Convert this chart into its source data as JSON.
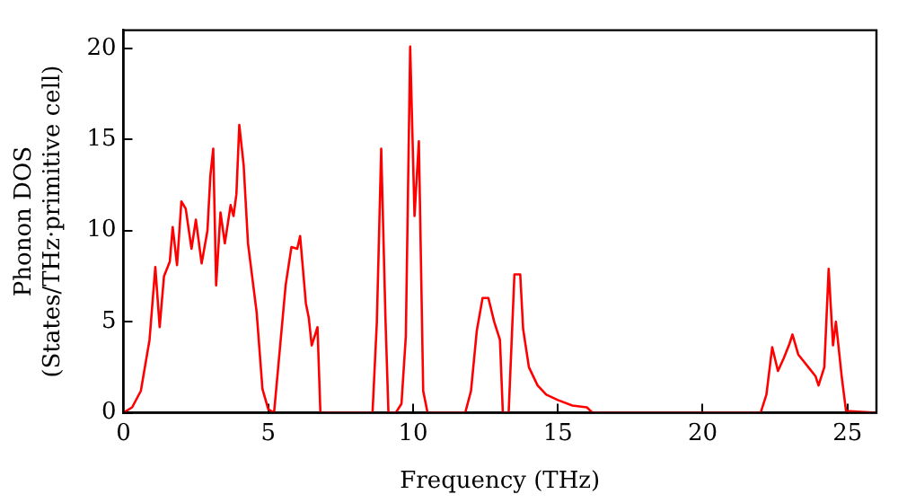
{
  "chart_data": {
    "type": "line",
    "xlabel": "Frequency (THz)",
    "ylabel": "Phonon DOS\n(States/THz·primitive cell)",
    "xlim": [
      0,
      26
    ],
    "xticks": [
      0,
      5,
      10,
      15,
      20,
      25
    ],
    "ylim": [
      0,
      21
    ],
    "yticks": [
      0,
      5,
      10,
      15,
      20
    ],
    "grid": false,
    "legend": false,
    "marker": "none",
    "line_style": "solid",
    "series": [
      {
        "color": "#ff0000",
        "x": [
          0,
          0.3,
          0.6,
          0.9,
          1.1,
          1.25,
          1.4,
          1.6,
          1.7,
          1.85,
          2.0,
          2.15,
          2.35,
          2.5,
          2.7,
          2.9,
          3.0,
          3.1,
          3.2,
          3.35,
          3.5,
          3.7,
          3.8,
          3.9,
          4.0,
          4.15,
          4.3,
          4.6,
          4.8,
          5.0,
          5.2,
          5.4,
          5.6,
          5.8,
          6.0,
          6.1,
          6.3,
          6.4,
          6.5,
          6.7,
          6.8,
          8.6,
          8.75,
          8.9,
          9.05,
          9.15,
          9.4,
          9.6,
          9.75,
          9.9,
          10.05,
          10.2,
          10.35,
          10.5,
          11.8,
          12.0,
          12.2,
          12.4,
          12.6,
          12.8,
          13.0,
          13.1,
          13.3,
          13.5,
          13.7,
          13.8,
          14.0,
          14.3,
          14.6,
          15.0,
          15.5,
          16.0,
          16.2,
          22.0,
          22.2,
          22.4,
          22.6,
          22.8,
          23.0,
          23.1,
          23.3,
          23.5,
          23.7,
          23.9,
          24.0,
          24.2,
          24.35,
          24.5,
          24.6,
          24.8,
          24.95,
          26
        ],
        "values": [
          0,
          0.3,
          1.2,
          4,
          8,
          4.7,
          7.5,
          8.3,
          10.2,
          8.1,
          11.6,
          11.2,
          9.0,
          10.6,
          8.2,
          10.0,
          13.0,
          14.5,
          7.0,
          11.0,
          9.3,
          11.4,
          10.8,
          12.0,
          15.8,
          13.6,
          9.3,
          5.5,
          1.3,
          0.2,
          0,
          3.5,
          7,
          9.1,
          9.0,
          9.7,
          6.0,
          5.2,
          3.7,
          4.7,
          0,
          0,
          5,
          14.5,
          5,
          0,
          0,
          0.5,
          4.2,
          20.1,
          10.8,
          14.9,
          1.2,
          0,
          0,
          1.2,
          4.5,
          6.3,
          6.3,
          5.0,
          4.0,
          0,
          0,
          7.6,
          7.6,
          4.6,
          2.5,
          1.5,
          1.0,
          0.7,
          0.4,
          0.3,
          0,
          0,
          1.0,
          3.6,
          2.3,
          3.0,
          3.8,
          4.3,
          3.2,
          2.8,
          2.4,
          2.0,
          1.5,
          2.5,
          7.9,
          3.7,
          5.0,
          2.0,
          0.1,
          0
        ]
      }
    ]
  }
}
